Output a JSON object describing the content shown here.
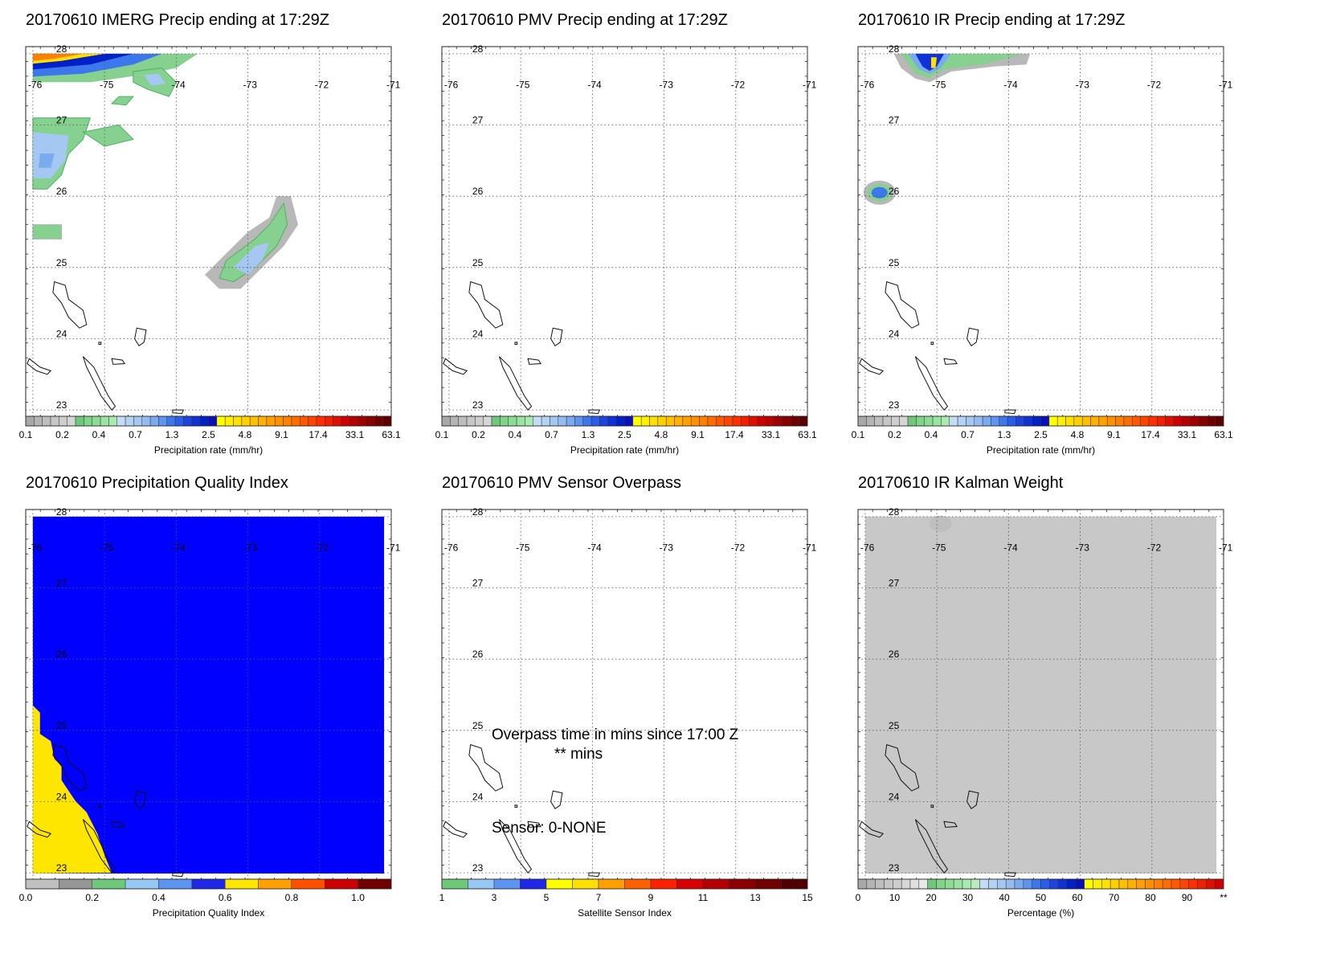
{
  "chart_data": [
    {
      "type": "heatmap",
      "title": "20170610 IMERG Precip ending at 17:29Z",
      "lon_ticks": [
        "-76",
        "-75",
        "-74",
        "-73",
        "-72",
        "-71"
      ],
      "lat_ticks": [
        "28",
        "27",
        "26",
        "25",
        "24",
        "23"
      ],
      "lon_range": [
        -76.1,
        -71
      ],
      "lat_range": [
        22.9,
        28.1
      ],
      "grid": "dotted",
      "colorbar": {
        "label": "Precipitation rate (mm/hr)",
        "ticks": [
          "0.1",
          "0.2",
          "0.4",
          "0.7",
          "1.3",
          "2.5",
          "4.8",
          "9.1",
          "17.4",
          "33.1",
          "63.1"
        ],
        "scale": "log"
      },
      "annotations": []
    },
    {
      "type": "heatmap",
      "title": "20170610 PMV Precip ending at 17:29Z",
      "lon_ticks": [
        "-76",
        "-75",
        "-74",
        "-73",
        "-72",
        "-71"
      ],
      "lat_ticks": [
        "28",
        "27",
        "26",
        "25",
        "24",
        "23"
      ],
      "lon_range": [
        -76.1,
        -71
      ],
      "lat_range": [
        22.9,
        28.1
      ],
      "grid": "dotted",
      "colorbar": {
        "label": "Precipitation rate (mm/hr)",
        "ticks": [
          "0.1",
          "0.2",
          "0.4",
          "0.7",
          "1.3",
          "2.5",
          "4.8",
          "9.1",
          "17.4",
          "33.1",
          "63.1"
        ],
        "scale": "log"
      },
      "annotations": []
    },
    {
      "type": "heatmap",
      "title": "20170610 IR Precip ending at 17:29Z",
      "lon_ticks": [
        "-76",
        "-75",
        "-74",
        "-73",
        "-72",
        "-71"
      ],
      "lat_ticks": [
        "28",
        "27",
        "26",
        "25",
        "24",
        "23"
      ],
      "lon_range": [
        -76.1,
        -71
      ],
      "lat_range": [
        22.9,
        28.1
      ],
      "grid": "dotted",
      "colorbar": {
        "label": "Precipitation rate (mm/hr)",
        "ticks": [
          "0.1",
          "0.2",
          "0.4",
          "0.7",
          "1.3",
          "2.5",
          "4.8",
          "9.1",
          "17.4",
          "33.1",
          "63.1"
        ],
        "scale": "log"
      },
      "annotations": []
    },
    {
      "type": "heatmap",
      "title": "20170610 Precipitation Quality Index",
      "lon_ticks": [
        "-76",
        "-75",
        "-74",
        "-73",
        "-72",
        "-71"
      ],
      "lat_ticks": [
        "28",
        "27",
        "26",
        "25",
        "24",
        "23"
      ],
      "lon_range": [
        -76.1,
        -71
      ],
      "lat_range": [
        22.9,
        28.1
      ],
      "grid": "dotted",
      "colorbar": {
        "label": "Precipitation Quality Index",
        "ticks": [
          "0.0",
          "0.2",
          "0.4",
          "0.6",
          "0.8",
          "1.0"
        ],
        "range": [
          0,
          1.1
        ]
      },
      "annotations": []
    },
    {
      "type": "heatmap",
      "title": "20170610 PMV Sensor Overpass",
      "lon_ticks": [
        "-76",
        "-75",
        "-74",
        "-73",
        "-72",
        "-71"
      ],
      "lat_ticks": [
        "28",
        "27",
        "26",
        "25",
        "24",
        "23"
      ],
      "lon_range": [
        -76.1,
        -71
      ],
      "lat_range": [
        22.9,
        28.1
      ],
      "grid": "dotted",
      "colorbar": {
        "label": "Satellite Sensor Index",
        "ticks": [
          "1",
          "3",
          "5",
          "7",
          "9",
          "11",
          "13",
          "15"
        ],
        "range": [
          1,
          15
        ]
      },
      "annotations": [
        "Overpass time in mins since 17:00 Z",
        "** mins",
        "Sensor:   0-NONE"
      ]
    },
    {
      "type": "heatmap",
      "title": "20170610 IR Kalman Weight",
      "lon_ticks": [
        "-76",
        "-75",
        "-74",
        "-73",
        "-72",
        "-71"
      ],
      "lat_ticks": [
        "28",
        "27",
        "26",
        "25",
        "24",
        "23"
      ],
      "lon_range": [
        -76.1,
        -71
      ],
      "lat_range": [
        22.9,
        28.1
      ],
      "grid": "dotted",
      "colorbar": {
        "label": "Percentage (%)",
        "ticks": [
          "0",
          "10",
          "20",
          "30",
          "40",
          "50",
          "60",
          "70",
          "80",
          "90",
          "**"
        ],
        "range": [
          0,
          100
        ]
      },
      "annotations": []
    }
  ],
  "colors": {
    "precip_scale": [
      "#a8a8a8",
      "#b4b4b4",
      "#bebebe",
      "#c6c6c6",
      "#cecece",
      "#d6d6d6",
      "#6ec87a",
      "#7ed489",
      "#8cdc96",
      "#9ae4a2",
      "#a8eab0",
      "#c4dcf6",
      "#b4d2f4",
      "#a4c8f2",
      "#94bcf0",
      "#7aaaf0",
      "#5c94ee",
      "#3c78ec",
      "#2a5ee8",
      "#1e44e0",
      "#1030d8",
      "#0020c8",
      "#0a10b8",
      "#ffff00",
      "#fff000",
      "#ffe000",
      "#ffd000",
      "#ffc000",
      "#ffb000",
      "#ffa000",
      "#ff9000",
      "#ff8000",
      "#ff6c00",
      "#ff5800",
      "#ff4400",
      "#ff3000",
      "#f02000",
      "#e01000",
      "#d00000",
      "#b80000",
      "#a00000",
      "#880000",
      "#700000",
      "#5c0000"
    ],
    "quality_scale": [
      "#c0c0c0",
      "#969696",
      "#6ec87a",
      "#96c8f5",
      "#5a96f0",
      "#1e28e6",
      "#ffe600",
      "#ffa000",
      "#ff5000",
      "#cd0000",
      "#6e0000"
    ],
    "sensor_scale": [
      "#6ec87a",
      "#96c8f5",
      "#5a96f0",
      "#1e28e6",
      "#ffff00",
      "#ffe000",
      "#ffa000",
      "#ff6000",
      "#ff2000",
      "#d80000",
      "#b40000",
      "#8c0000",
      "#6e0000",
      "#500000"
    ],
    "percent_scale": [
      "#a8a8a8",
      "#b4b4b4",
      "#bebebe",
      "#c6c6c6",
      "#cecece",
      "#d6d6d6",
      "#e0e0e0",
      "#e8e8e8",
      "#6ec87a",
      "#7ed489",
      "#8cdc96",
      "#9ae4a2",
      "#a8eab0",
      "#b8ecbe",
      "#c4dcf6",
      "#b4d2f4",
      "#a4c8f2",
      "#94bcf0",
      "#7aaaf0",
      "#5c94ee",
      "#3c78ec",
      "#2a5ee8",
      "#1e44e0",
      "#1030d8",
      "#0020c8",
      "#0a10b8",
      "#ffff00",
      "#fff000",
      "#ffe000",
      "#ffd000",
      "#ffc000",
      "#ffb000",
      "#ffa000",
      "#ff9000",
      "#ff8000",
      "#ff6c00",
      "#ff5800",
      "#ff4400",
      "#ff3000",
      "#f02000",
      "#e01000",
      "#d00000"
    ],
    "pqi_blue": "#0000ff",
    "pqi_yellow": "#ffe600",
    "kalman_grey": "#c8c8c8"
  }
}
